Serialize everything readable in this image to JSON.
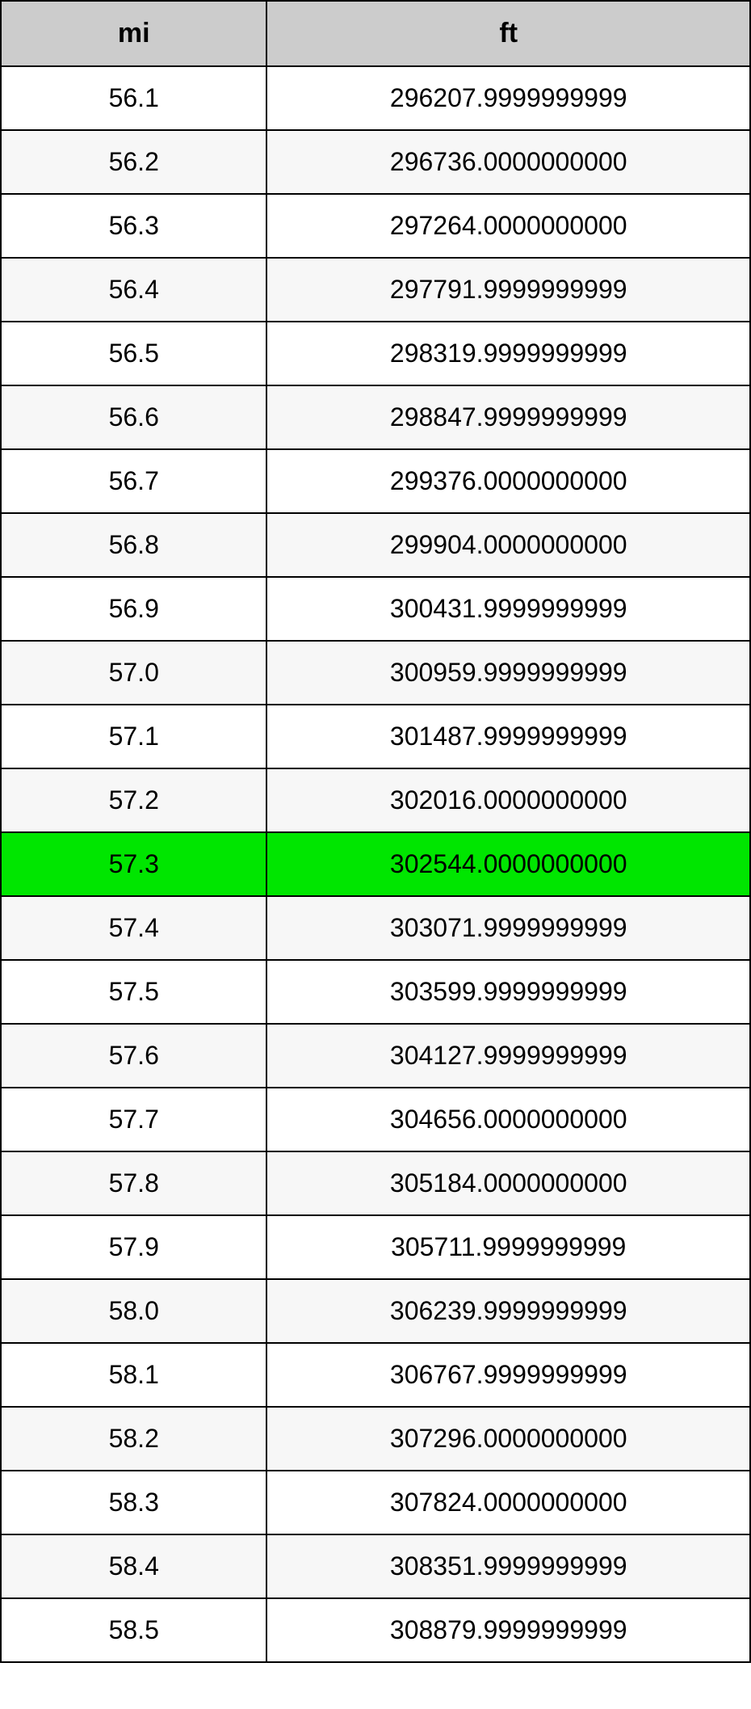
{
  "table": {
    "columns": [
      "mi",
      "ft"
    ],
    "highlight_index": 12,
    "header_bg": "#cccccc",
    "highlight_bg": "#00e600",
    "row_bg_even": "#ffffff",
    "row_bg_odd": "#f7f7f7",
    "border_color": "#000000",
    "header_fontsize": 34,
    "cell_fontsize": 32,
    "col_widths_pct": [
      35.5,
      64.5
    ],
    "rows": [
      [
        "56.1",
        "296207.9999999999"
      ],
      [
        "56.2",
        "296736.0000000000"
      ],
      [
        "56.3",
        "297264.0000000000"
      ],
      [
        "56.4",
        "297791.9999999999"
      ],
      [
        "56.5",
        "298319.9999999999"
      ],
      [
        "56.6",
        "298847.9999999999"
      ],
      [
        "56.7",
        "299376.0000000000"
      ],
      [
        "56.8",
        "299904.0000000000"
      ],
      [
        "56.9",
        "300431.9999999999"
      ],
      [
        "57.0",
        "300959.9999999999"
      ],
      [
        "57.1",
        "301487.9999999999"
      ],
      [
        "57.2",
        "302016.0000000000"
      ],
      [
        "57.3",
        "302544.0000000000"
      ],
      [
        "57.4",
        "303071.9999999999"
      ],
      [
        "57.5",
        "303599.9999999999"
      ],
      [
        "57.6",
        "304127.9999999999"
      ],
      [
        "57.7",
        "304656.0000000000"
      ],
      [
        "57.8",
        "305184.0000000000"
      ],
      [
        "57.9",
        "305711.9999999999"
      ],
      [
        "58.0",
        "306239.9999999999"
      ],
      [
        "58.1",
        "306767.9999999999"
      ],
      [
        "58.2",
        "307296.0000000000"
      ],
      [
        "58.3",
        "307824.0000000000"
      ],
      [
        "58.4",
        "308351.9999999999"
      ],
      [
        "58.5",
        "308879.9999999999"
      ]
    ]
  }
}
